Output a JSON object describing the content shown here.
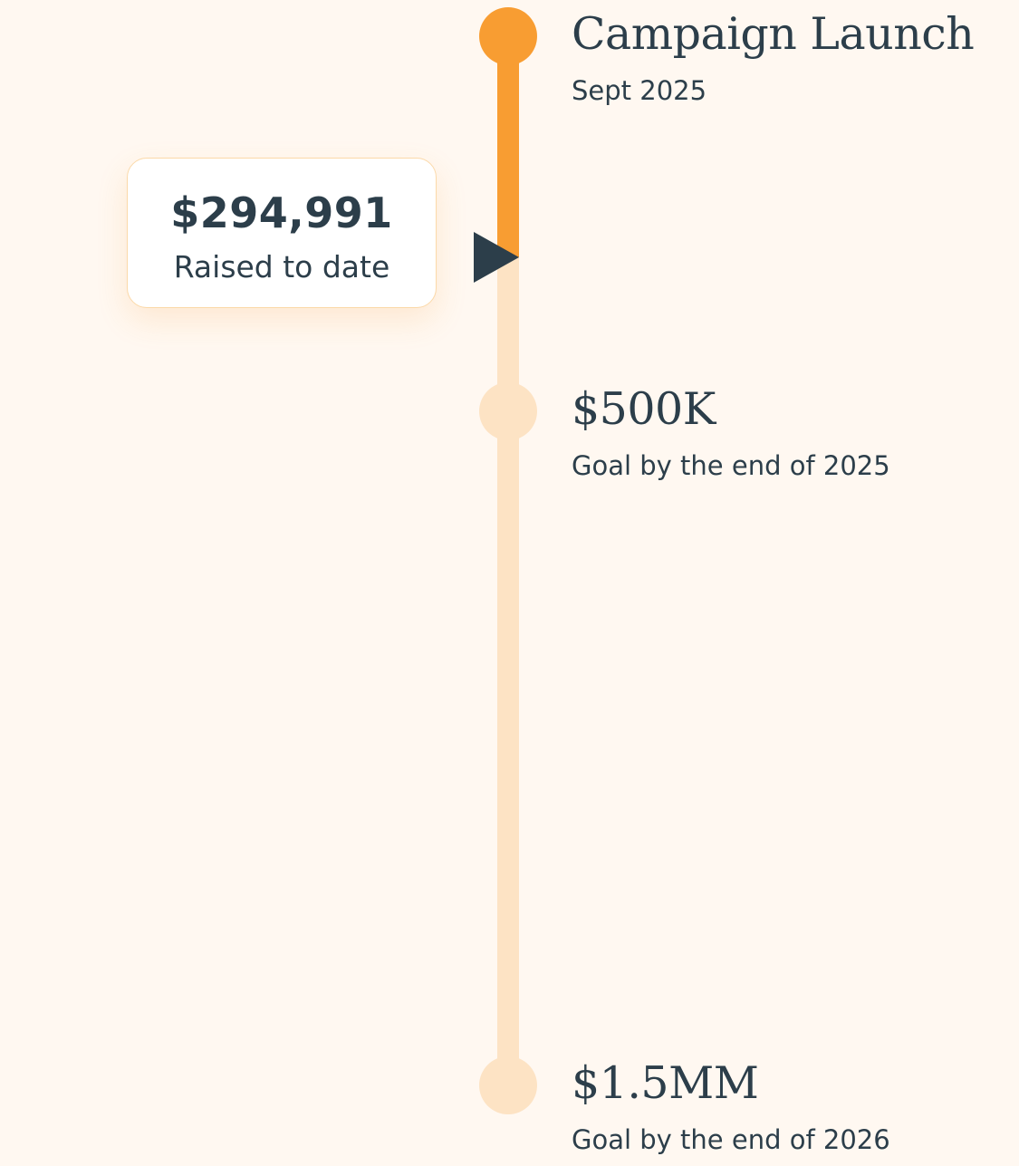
{
  "colors": {
    "background": "#FFF8F1",
    "progress": "#F89D32",
    "track": "#FDE3C4",
    "text": "#2C3E4A",
    "card_border": "#FBD9A9"
  },
  "progress": {
    "amount": "$294,991",
    "caption": "Raised to date",
    "raised_value": 294991
  },
  "milestones": [
    {
      "title": "Campaign Launch",
      "subtitle": "Sept 2025",
      "value": 0,
      "reached": true
    },
    {
      "title": "$500K",
      "subtitle": "Goal by the end of 2025",
      "value": 500000,
      "reached": false
    },
    {
      "title": "$1.5MM",
      "subtitle": "Goal by the end of 2026",
      "value": 1500000,
      "reached": false
    }
  ]
}
